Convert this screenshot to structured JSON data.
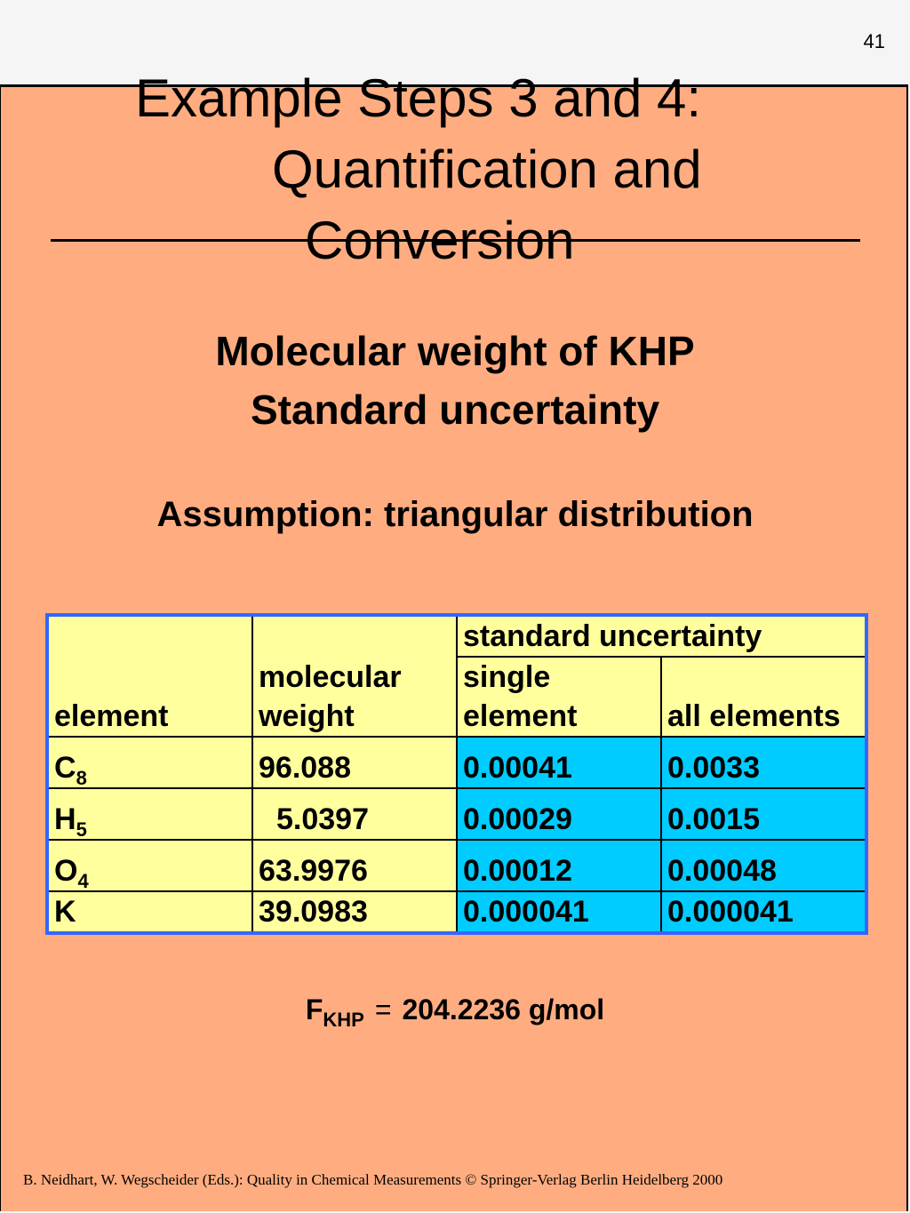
{
  "page_number": "41",
  "title": {
    "line1": "Example Steps 3 and 4:",
    "line2": "Quantification and",
    "line3": "Conversion"
  },
  "heading": {
    "line1": "Molecular weight of KHP",
    "line2": "Standard uncertainty",
    "assumption": "Assumption: triangular distribution"
  },
  "table": {
    "header": {
      "element": "element",
      "mw_line1": "molecular",
      "mw_line2": "weight",
      "std_unc": "standard uncertainty",
      "single_line1": "single",
      "single_line2": "element",
      "all": "all elements"
    },
    "rows": [
      {
        "symbol": "C",
        "sub": "8",
        "mw": "96.088",
        "single": "0.00041",
        "all": "0.0033"
      },
      {
        "symbol": "H",
        "sub": "5",
        "mw": "5.0397",
        "single": "0.00029",
        "all": "0.0015"
      },
      {
        "symbol": "O",
        "sub": "4",
        "mw": "63.9976",
        "single": "0.00012",
        "all": "0.00048"
      },
      {
        "symbol": "K",
        "sub": "",
        "mw": "39.0983",
        "single": "0.000041",
        "all": "0.000041"
      }
    ]
  },
  "formula": {
    "symbol": "F",
    "subscript": "KHP",
    "equals": "=",
    "value": "204.2236 g/mol"
  },
  "footer": "B. Neidhart, W. Wegscheider (Eds.): Quality in Chemical Measurements © Springer-Verlag Berlin Heidelberg 2000",
  "colors": {
    "slide_background": "#ffad80",
    "table_cell": "#ffff9e",
    "table_highlight": "#00ccff",
    "table_border": "#3366ff"
  }
}
